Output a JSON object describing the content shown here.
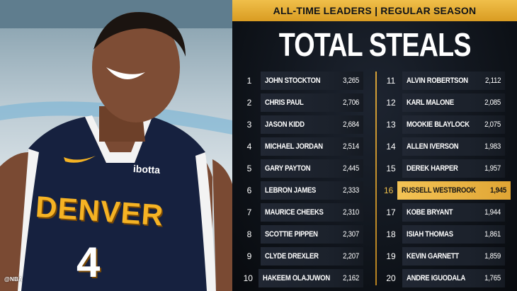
{
  "photo": {
    "credit": "@NBA",
    "jersey_text": "DENVER",
    "jersey_sponsor": "ibotta",
    "jersey_number": "4"
  },
  "header": {
    "banner": "ALL-TIME LEADERS | REGULAR SEASON",
    "title": "TOTAL STEALS"
  },
  "colors": {
    "accent_gold": "#e8ae33",
    "panel_dark": "#0d1117",
    "row_dark": "#1f2530",
    "jersey_navy": "#16213f"
  },
  "leaders": {
    "left": [
      {
        "rank": "1",
        "name": "JOHN STOCKTON",
        "value": "3,265"
      },
      {
        "rank": "2",
        "name": "CHRIS PAUL",
        "value": "2,706"
      },
      {
        "rank": "3",
        "name": "JASON KIDD",
        "value": "2,684"
      },
      {
        "rank": "4",
        "name": "MICHAEL JORDAN",
        "value": "2,514"
      },
      {
        "rank": "5",
        "name": "GARY PAYTON",
        "value": "2,445"
      },
      {
        "rank": "6",
        "name": "LEBRON JAMES",
        "value": "2,333"
      },
      {
        "rank": "7",
        "name": "MAURICE CHEEKS",
        "value": "2,310"
      },
      {
        "rank": "8",
        "name": "SCOTTIE PIPPEN",
        "value": "2,307"
      },
      {
        "rank": "9",
        "name": "CLYDE DREXLER",
        "value": "2,207"
      },
      {
        "rank": "10",
        "name": "HAKEEM OLAJUWON",
        "value": "2,162"
      }
    ],
    "right": [
      {
        "rank": "11",
        "name": "ALVIN ROBERTSON",
        "value": "2,112"
      },
      {
        "rank": "12",
        "name": "KARL MALONE",
        "value": "2,085"
      },
      {
        "rank": "13",
        "name": "MOOKIE BLAYLOCK",
        "value": "2,075"
      },
      {
        "rank": "14",
        "name": "ALLEN IVERSON",
        "value": "1,983"
      },
      {
        "rank": "15",
        "name": "DEREK HARPER",
        "value": "1,957"
      },
      {
        "rank": "16",
        "name": "RUSSELL WESTBROOK",
        "value": "1,945",
        "highlight": true
      },
      {
        "rank": "17",
        "name": "KOBE BRYANT",
        "value": "1,944"
      },
      {
        "rank": "18",
        "name": "ISIAH THOMAS",
        "value": "1,861"
      },
      {
        "rank": "19",
        "name": "KEVIN GARNETT",
        "value": "1,859"
      },
      {
        "rank": "20",
        "name": "ANDRE IGUODALA",
        "value": "1,765"
      }
    ]
  }
}
